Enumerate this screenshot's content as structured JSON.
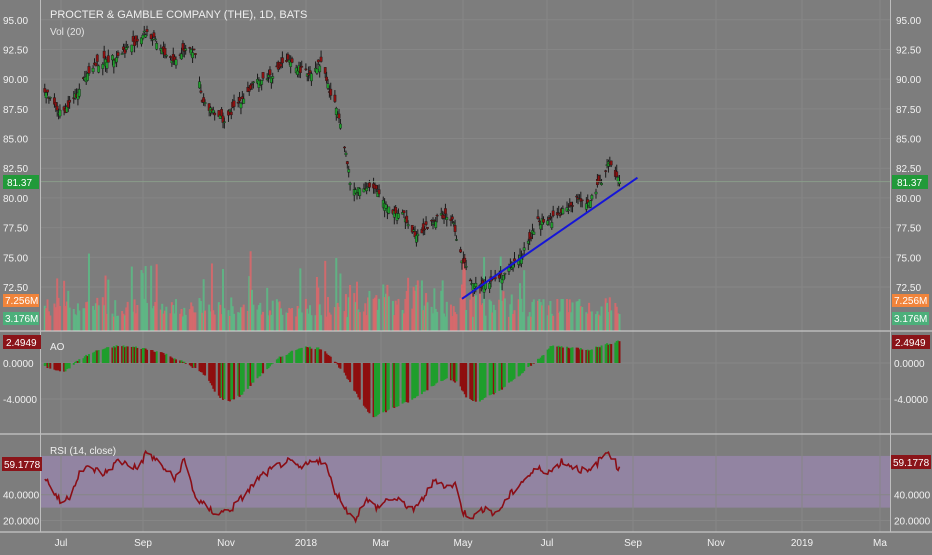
{
  "header": {
    "title": "PROCTER & GAMBLE COMPANY (THE), 1D, BATS",
    "volume_label": "Vol (20)"
  },
  "panes": {
    "ao": {
      "label": "AO"
    },
    "rsi": {
      "label": "RSI (14, close)"
    }
  },
  "badges": {
    "price": "81.37",
    "vol_ma": "7.256M",
    "vol_last": "3.176M",
    "ao": "2.4949",
    "rsi": "59.1778"
  },
  "colors": {
    "background": "#7d7d7d",
    "up": "#1f9e2c",
    "down": "#8e0f0f",
    "vol_up": "#5db885",
    "vol_down": "#d9686b",
    "trendline": "#1515d8",
    "rsi_line": "#8a0e16",
    "rsi_band": "#9585a8",
    "price_badge": "#219a39",
    "vol_ma_badge": "#f0843b",
    "vol_last_badge": "#4caf7a",
    "ao_badge": "#8a1419",
    "rsi_badge": "#8a1419"
  },
  "chart_data": [
    {
      "type": "candlestick",
      "pane": "price",
      "x_axis": {
        "type": "date",
        "range": [
          "2017-07-01",
          "2019-03-01"
        ],
        "tick_labels": [
          "Jul",
          "Sep",
          "Nov",
          "2018",
          "Mar",
          "May",
          "Jul",
          "Sep",
          "Nov",
          "2019",
          "Ma"
        ]
      },
      "y_axis": {
        "range": [
          71.4,
          95.4
        ],
        "tick_labels": [
          "95.00",
          "92.50",
          "90.00",
          "87.50",
          "85.00",
          "82.50",
          "80.00",
          "77.50",
          "75.00",
          "72.50"
        ]
      },
      "last_price": 81.37,
      "close_path": [
        [
          "2017-07-01",
          89.5
        ],
        [
          "2017-07-08",
          88.0
        ],
        [
          "2017-07-15",
          87.0
        ],
        [
          "2017-07-25",
          88.5
        ],
        [
          "2017-08-05",
          91.0
        ],
        [
          "2017-08-15",
          91.5
        ],
        [
          "2017-08-25",
          92.0
        ],
        [
          "2017-09-05",
          93.0
        ],
        [
          "2017-09-15",
          94.0
        ],
        [
          "2017-09-25",
          92.5
        ],
        [
          "2017-10-05",
          91.5
        ],
        [
          "2017-10-15",
          93.0
        ],
        [
          "2017-10-20",
          92.0
        ],
        [
          "2017-10-25",
          88.0
        ],
        [
          "2017-11-01",
          87.5
        ],
        [
          "2017-11-10",
          86.5
        ],
        [
          "2017-11-20",
          88.0
        ],
        [
          "2017-12-01",
          89.5
        ],
        [
          "2017-12-15",
          90.5
        ],
        [
          "2017-12-25",
          91.5
        ],
        [
          "2018-01-01",
          91.0
        ],
        [
          "2018-01-10",
          90.5
        ],
        [
          "2018-01-20",
          91.5
        ],
        [
          "2018-01-25",
          89.0
        ],
        [
          "2018-02-01",
          87.0
        ],
        [
          "2018-02-05",
          84.5
        ],
        [
          "2018-02-10",
          80.5
        ],
        [
          "2018-02-20",
          81.0
        ],
        [
          "2018-03-01",
          80.5
        ],
        [
          "2018-03-10",
          79.0
        ],
        [
          "2018-03-20",
          78.5
        ],
        [
          "2018-03-28",
          77.0
        ],
        [
          "2018-04-05",
          77.5
        ],
        [
          "2018-04-15",
          78.5
        ],
        [
          "2018-04-24",
          78.2
        ],
        [
          "2018-05-01",
          74.8
        ],
        [
          "2018-05-10",
          72.5
        ],
        [
          "2018-05-20",
          73.0
        ],
        [
          "2018-06-01",
          73.5
        ],
        [
          "2018-06-15",
          75.5
        ],
        [
          "2018-06-25",
          78.0
        ],
        [
          "2018-07-05",
          78.2
        ],
        [
          "2018-07-15",
          79.0
        ],
        [
          "2018-07-25",
          80.0
        ],
        [
          "2018-08-01",
          79.5
        ],
        [
          "2018-08-10",
          81.5
        ],
        [
          "2018-08-15",
          83.0
        ],
        [
          "2018-08-23",
          81.37
        ]
      ],
      "annotations": [
        {
          "type": "horizontal_line",
          "y": 81.37
        },
        {
          "type": "trendline",
          "from": [
            "2018-05-01",
            71.5
          ],
          "to": [
            "2018-09-05",
            81.7
          ],
          "color": "#1515d8"
        }
      ]
    },
    {
      "type": "bar",
      "pane": "volume",
      "label": "Vol (20)",
      "x_range": [
        "2017-07-01",
        "2018-08-23"
      ],
      "values_shown": [
        "7.256M",
        "3.176M"
      ]
    },
    {
      "type": "histogram",
      "pane": "ao",
      "label": "AO",
      "y_axis": {
        "range": [
          -6.4,
          3.2
        ],
        "tick_labels": [
          "0.0000",
          "-4.0000"
        ]
      },
      "last_value": 2.4949,
      "path": [
        [
          "2017-07-01",
          -0.3
        ],
        [
          "2017-07-10",
          -0.7
        ],
        [
          "2017-07-18",
          -0.9
        ],
        [
          "2017-07-28",
          0.4
        ],
        [
          "2017-08-10",
          1.4
        ],
        [
          "2017-08-25",
          1.9
        ],
        [
          "2017-09-10",
          1.7
        ],
        [
          "2017-09-25",
          1.2
        ],
        [
          "2017-10-10",
          0.2
        ],
        [
          "2017-10-20",
          -0.6
        ],
        [
          "2017-10-28",
          -1.5
        ],
        [
          "2017-11-05",
          -3.6
        ],
        [
          "2017-11-12",
          -4.3
        ],
        [
          "2017-11-22",
          -3.6
        ],
        [
          "2017-12-05",
          -1.5
        ],
        [
          "2017-12-20",
          0.6
        ],
        [
          "2018-01-05",
          1.8
        ],
        [
          "2018-01-20",
          1.6
        ],
        [
          "2018-01-28",
          0.4
        ],
        [
          "2018-02-05",
          -1.2
        ],
        [
          "2018-02-15",
          -3.8
        ],
        [
          "2018-02-25",
          -6.0
        ],
        [
          "2018-03-05",
          -5.5
        ],
        [
          "2018-03-15",
          -4.8
        ],
        [
          "2018-03-25",
          -4.2
        ],
        [
          "2018-04-10",
          -2.5
        ],
        [
          "2018-04-20",
          -1.6
        ],
        [
          "2018-04-28",
          -2.2
        ],
        [
          "2018-05-05",
          -4.0
        ],
        [
          "2018-05-12",
          -4.3
        ],
        [
          "2018-05-25",
          -3.4
        ],
        [
          "2018-06-10",
          -1.6
        ],
        [
          "2018-06-25",
          0.4
        ],
        [
          "2018-07-05",
          1.9
        ],
        [
          "2018-07-20",
          1.7
        ],
        [
          "2018-08-01",
          1.5
        ],
        [
          "2018-08-10",
          1.9
        ],
        [
          "2018-08-23",
          2.4949
        ]
      ]
    },
    {
      "type": "line",
      "pane": "rsi",
      "label": "RSI (14, close)",
      "y_axis": {
        "range": [
          15,
          80
        ],
        "tick_labels": [
          "40.0000",
          "20.0000"
        ]
      },
      "band": [
        30,
        70
      ],
      "last_value": 59.1778,
      "path": [
        [
          "2017-07-01",
          57
        ],
        [
          "2017-07-08",
          45
        ],
        [
          "2017-07-15",
          33
        ],
        [
          "2017-07-22",
          40
        ],
        [
          "2017-07-28",
          58
        ],
        [
          "2017-08-05",
          61
        ],
        [
          "2017-08-15",
          56
        ],
        [
          "2017-08-25",
          66
        ],
        [
          "2017-09-01",
          64
        ],
        [
          "2017-09-08",
          60
        ],
        [
          "2017-09-15",
          73
        ],
        [
          "2017-09-25",
          63
        ],
        [
          "2017-10-05",
          52
        ],
        [
          "2017-10-12",
          67
        ],
        [
          "2017-10-20",
          38
        ],
        [
          "2017-10-28",
          30
        ],
        [
          "2017-11-05",
          25
        ],
        [
          "2017-11-15",
          29
        ],
        [
          "2017-11-25",
          40
        ],
        [
          "2017-12-05",
          53
        ],
        [
          "2017-12-15",
          60
        ],
        [
          "2017-12-25",
          66
        ],
        [
          "2018-01-05",
          60
        ],
        [
          "2018-01-15",
          68
        ],
        [
          "2018-01-22",
          64
        ],
        [
          "2018-01-28",
          45
        ],
        [
          "2018-02-05",
          31
        ],
        [
          "2018-02-12",
          20
        ],
        [
          "2018-02-20",
          36
        ],
        [
          "2018-03-01",
          30
        ],
        [
          "2018-03-10",
          38
        ],
        [
          "2018-03-20",
          33
        ],
        [
          "2018-03-28",
          28
        ],
        [
          "2018-04-05",
          41
        ],
        [
          "2018-04-12",
          52
        ],
        [
          "2018-04-20",
          46
        ],
        [
          "2018-04-26",
          48
        ],
        [
          "2018-05-02",
          26
        ],
        [
          "2018-05-10",
          23
        ],
        [
          "2018-05-18",
          31
        ],
        [
          "2018-05-25",
          24
        ],
        [
          "2018-06-05",
          40
        ],
        [
          "2018-06-15",
          52
        ],
        [
          "2018-06-25",
          60
        ],
        [
          "2018-07-05",
          58
        ],
        [
          "2018-07-12",
          66
        ],
        [
          "2018-07-22",
          61
        ],
        [
          "2018-08-01",
          57
        ],
        [
          "2018-08-08",
          66
        ],
        [
          "2018-08-15",
          74
        ],
        [
          "2018-08-23",
          59.1778
        ]
      ]
    }
  ]
}
